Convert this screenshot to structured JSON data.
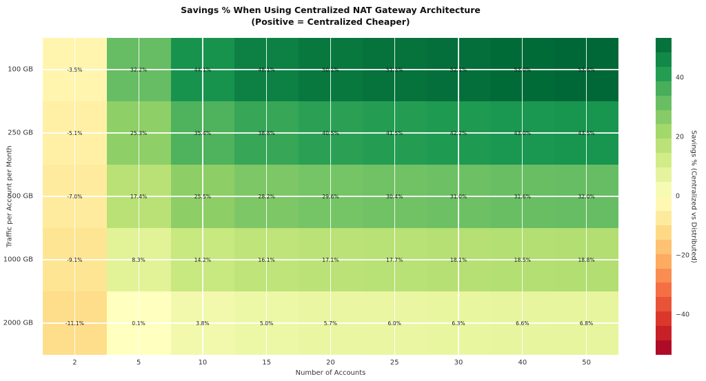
{
  "chart_data": {
    "type": "heatmap",
    "title_line1": "Savings % When Using Centralized NAT Gateway Architecture",
    "title_line2": "(Positive = Centralized Cheaper)",
    "xlabel": "Number of Accounts",
    "ylabel": "Traffic per Account per Month",
    "x_categories": [
      "2",
      "5",
      "10",
      "15",
      "20",
      "25",
      "30",
      "40",
      "50"
    ],
    "y_categories": [
      "100 GB",
      "250 GB",
      "500 GB",
      "1000 GB",
      "2000 GB"
    ],
    "values": [
      [
        -3.5,
        32.2,
        44.1,
        48.1,
        50.1,
        51.3,
        52.1,
        53.0,
        53.6
      ],
      [
        -5.1,
        25.3,
        35.4,
        38.8,
        40.5,
        41.5,
        42.2,
        43.0,
        43.5
      ],
      [
        -7.0,
        17.4,
        25.5,
        28.2,
        29.6,
        30.4,
        31.0,
        31.6,
        32.0
      ],
      [
        -9.1,
        8.3,
        14.2,
        16.1,
        17.1,
        17.7,
        18.1,
        18.5,
        18.8
      ],
      [
        -11.1,
        0.1,
        3.8,
        5.0,
        5.7,
        6.0,
        6.3,
        6.6,
        6.8
      ]
    ],
    "cell_labels": [
      [
        "-3.5%",
        "32.2%",
        "44.1%",
        "48.1%",
        "50.1%",
        "51.3%",
        "52.1%",
        "53.0%",
        "53.6%"
      ],
      [
        "-5.1%",
        "25.3%",
        "35.4%",
        "38.8%",
        "40.5%",
        "41.5%",
        "42.2%",
        "43.0%",
        "43.5%"
      ],
      [
        "-7.0%",
        "17.4%",
        "25.5%",
        "28.2%",
        "29.6%",
        "30.4%",
        "31.0%",
        "31.6%",
        "32.0%"
      ],
      [
        "-9.1%",
        "8.3%",
        "14.2%",
        "16.1%",
        "17.1%",
        "17.7%",
        "18.1%",
        "18.5%",
        "18.8%"
      ],
      [
        "-11.1%",
        "0.1%",
        "3.8%",
        "5.0%",
        "5.7%",
        "6.0%",
        "6.3%",
        "6.6%",
        "6.8%"
      ]
    ],
    "colormap": "RdYlGn",
    "vmin": -53.6,
    "vmax": 53.6,
    "grid": true,
    "gridline_color": "#ffffff",
    "colorbar": {
      "label": "Savings % (Centralized vs Distributed)",
      "tick_values": [
        40,
        20,
        0,
        -20,
        -40
      ],
      "tick_labels": [
        "40",
        "20",
        "0",
        "−20",
        "−40"
      ],
      "bands": 22
    },
    "colormap_anchors": [
      "#A50026",
      "#D73027",
      "#F46D43",
      "#FDAE61",
      "#FEE08B",
      "#FFFFBF",
      "#D9EF8B",
      "#A6D96A",
      "#66BD63",
      "#1A9850",
      "#006837"
    ]
  }
}
